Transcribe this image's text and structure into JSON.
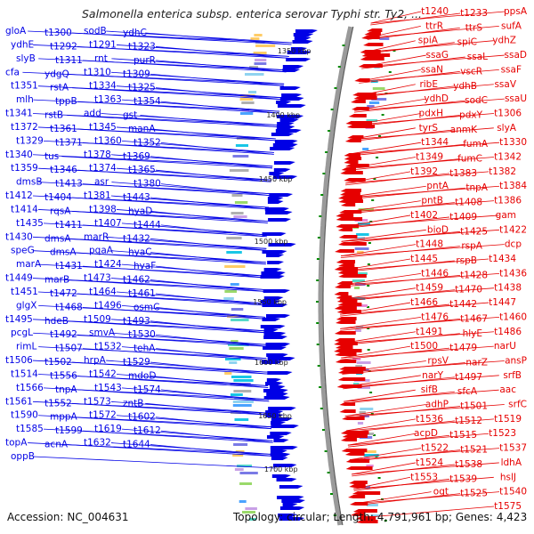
{
  "title": "Salmonella enterica subsp. enterica serovar Typhi str. Ty2, ...",
  "footer": {
    "accession_label": "Accession:",
    "accession": "NC_004631",
    "topology_label": "Topology:",
    "topology": "circular",
    "length_label": "Length:",
    "length": "4,791,961 bp",
    "genes_label": "Genes:",
    "genes": "4,423"
  },
  "colors": {
    "forward": "#0000e6",
    "reverse": "#e60000",
    "rna": "#2aa0e0",
    "backbone": "#9a9a9a",
    "tick": "#008800"
  },
  "kbp_ticks": [
    "1350 kbp",
    "1400 kbp",
    "1450 kbp",
    "1500 kbp",
    "1550 kbp",
    "1600 kbp",
    "1650 kbp",
    "1700 kbp"
  ],
  "left_labels": [
    "gloA",
    "t1300",
    "sodB",
    "ydhC",
    "ydhE",
    "t1292",
    "t1291",
    "t1323",
    "slyB",
    "t1311",
    "rnt",
    "purR",
    "cfa",
    "ydgQ",
    "t1310",
    "t1309",
    "t1351",
    "rstA",
    "t1334",
    "t1325",
    "mlh",
    "tppB",
    "t1363",
    "t1354",
    "t1341",
    "rstB",
    "add",
    "gst",
    "t1372",
    "t1361",
    "t1345",
    "manA",
    "t1329",
    "t1371",
    "t1360",
    "t1352",
    "t1340",
    "tus",
    "t1378",
    "t1369",
    "t1359",
    "t1346",
    "t1374",
    "t1365",
    "dmsB",
    "t1413",
    "asr",
    "t1380",
    "t1412",
    "t1404",
    "t1381",
    "t1443",
    "t1414",
    "rqsA",
    "t1398",
    "hyaD",
    "t1435",
    "t1411",
    "t1407",
    "t1444",
    "t1430",
    "dmsA",
    "marR",
    "t1432",
    "speG",
    "dmsA",
    "pqaA",
    "hyaC",
    "marA",
    "t1431",
    "t1424",
    "hyaF",
    "t1449",
    "marB",
    "t1473",
    "t1462",
    "t1451",
    "t1472",
    "t1464",
    "t1461",
    "glgX",
    "t1468",
    "t1496",
    "osmC",
    "t1495",
    "hdeB",
    "t1509",
    "t1493",
    "pcgL",
    "t1492",
    "smvA",
    "t1530",
    "rimL",
    "t1507",
    "t1532",
    "tehA",
    "t1506",
    "t1502",
    "hrpA",
    "t1529",
    "t1514",
    "t1556",
    "t1542",
    "mdoD",
    "t1566",
    "tnpA",
    "t1543",
    "t1574",
    "t1561",
    "t1552",
    "t1573",
    "zntB",
    "t1590",
    "mppA",
    "t1572",
    "t1602",
    "t1585",
    "t1599",
    "t1619",
    "t1612",
    "topA",
    "acnA",
    "t1632",
    "t1644",
    "oppB"
  ],
  "right_labels": [
    "ppsA",
    "t1233",
    "t1240",
    "sufA",
    "ttrS",
    "ttrR",
    "ydhZ",
    "spiC",
    "spiA",
    "ssaD",
    "ssaL",
    "ssaG",
    "ssaF",
    "vscR",
    "ssaN",
    "ssaV",
    "ydhB",
    "ribE",
    "ssaU",
    "sodC",
    "ydhD",
    "t1306",
    "pdxY",
    "pdxH",
    "slyA",
    "anmK",
    "tyrS",
    "t1330",
    "fumA",
    "t1344",
    "t1342",
    "fumC",
    "t1349",
    "t1382",
    "t1383",
    "t1392",
    "t1384",
    "tnpA",
    "pntA",
    "t1386",
    "t1408",
    "pntB",
    "gam",
    "t1409",
    "t1402",
    "t1422",
    "t1425",
    "bioD",
    "dcp",
    "rspA",
    "t1448",
    "t1434",
    "rspB",
    "t1445",
    "t1436",
    "t1428",
    "t1446",
    "t1438",
    "t1470",
    "t1459",
    "t1447",
    "t1442",
    "t1466",
    "t1460",
    "t1467",
    "t1476",
    "t1486",
    "hlyE",
    "t1491",
    "narU",
    "t1479",
    "t1500",
    "ansP",
    "narZ",
    "rpsV",
    "srfB",
    "t1497",
    "narY",
    "aac",
    "sfcA",
    "sifB",
    "srfC",
    "t1501",
    "adhP",
    "t1519",
    "t1512",
    "t1536",
    "t1523",
    "t1515",
    "acpD",
    "t1537",
    "t1521",
    "t1522",
    "ldhA",
    "t1538",
    "t1524",
    "hslJ",
    "t1539",
    "t1553",
    "t1540",
    "t1525",
    "ogt",
    "t1575"
  ]
}
